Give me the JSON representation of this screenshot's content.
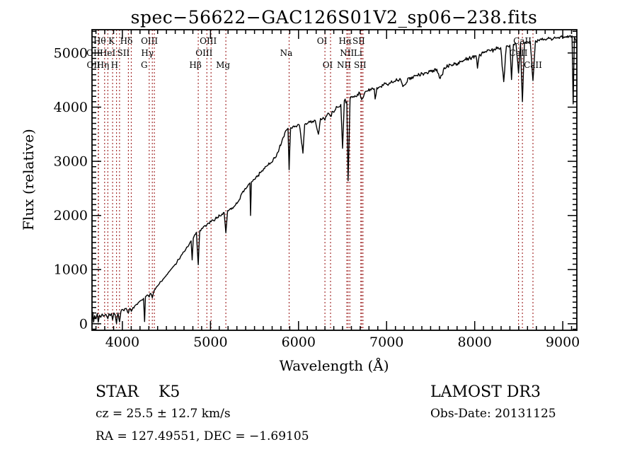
{
  "title": "spec−56622−GAC126S01V2_sp06−238.fits",
  "chart_data": {
    "type": "line",
    "title": "spec−56622−GAC126S01V2_sp06−238.fits",
    "xlabel": "Wavelength (Å)",
    "ylabel": "Flux (relative)",
    "xlim": [
      3655,
      9160
    ],
    "ylim": [
      -120,
      5430
    ],
    "x_major_ticks": [
      4000,
      5000,
      6000,
      7000,
      8000,
      9000
    ],
    "y_major_ticks": [
      0,
      1000,
      2000,
      3000,
      4000,
      5000
    ],
    "x_minor_step": 100,
    "y_minor_step": 100,
    "grid": "off",
    "legend": "none",
    "curve_color": "#000000",
    "marker_line_color": "#a53030",
    "spectral_lines": [
      {
        "label": "Hθ",
        "wavelength": 3798,
        "row": 1
      },
      {
        "label": "K",
        "wavelength": 3933,
        "row": 1
      },
      {
        "label": "Hδ",
        "wavelength": 4101,
        "row": 1
      },
      {
        "label": "OIII",
        "wavelength": 4363,
        "row": 1
      },
      {
        "label": "OIII",
        "wavelength": 5007,
        "row": 1
      },
      {
        "label": "OI",
        "wavelength": 6300,
        "row": 1
      },
      {
        "label": "Hα",
        "wavelength": 6563,
        "row": 1
      },
      {
        "label": "SII",
        "wavelength": 6716,
        "row": 1
      },
      {
        "label": "CaII",
        "wavelength": 8542,
        "row": 1
      },
      {
        "label": "OII",
        "wavelength": 3726,
        "row": 2
      },
      {
        "label": "HeI",
        "wavelength": 3889,
        "row": 2
      },
      {
        "label": "SII",
        "wavelength": 4068,
        "row": 2
      },
      {
        "label": "Hγ",
        "wavelength": 4340,
        "row": 2
      },
      {
        "label": "OIII",
        "wavelength": 4959,
        "row": 2
      },
      {
        "label": "Na",
        "wavelength": 5893,
        "row": 2
      },
      {
        "label": "NII",
        "wavelength": 6583,
        "row": 2
      },
      {
        "label": "Li",
        "wavelength": 6707,
        "row": 2
      },
      {
        "label": "CaII",
        "wavelength": 8498,
        "row": 2
      },
      {
        "label": "OII",
        "wavelength": 3729,
        "row": 3
      },
      {
        "label": "Hη",
        "wavelength": 3835,
        "row": 3
      },
      {
        "label": "H",
        "wavelength": 3968,
        "row": 3
      },
      {
        "label": "G",
        "wavelength": 4304,
        "row": 3
      },
      {
        "label": "Hβ",
        "wavelength": 4861,
        "row": 3
      },
      {
        "label": "Mg",
        "wavelength": 5175,
        "row": 3
      },
      {
        "label": "OI",
        "wavelength": 6363,
        "row": 3
      },
      {
        "label": "NII",
        "wavelength": 6548,
        "row": 3
      },
      {
        "label": "SII",
        "wavelength": 6731,
        "row": 3
      },
      {
        "label": "CaII",
        "wavelength": 8662,
        "row": 3
      }
    ],
    "series": [
      {
        "name": "flux",
        "points": [
          [
            3655,
            60
          ],
          [
            3665,
            210
          ],
          [
            3673,
            30
          ],
          [
            3685,
            150
          ],
          [
            3700,
            90
          ],
          [
            3715,
            190
          ],
          [
            3726,
            30
          ],
          [
            3740,
            160
          ],
          [
            3755,
            120
          ],
          [
            3770,
            180
          ],
          [
            3785,
            140
          ],
          [
            3798,
            155
          ],
          [
            3812,
            175
          ],
          [
            3825,
            130
          ],
          [
            3835,
            95
          ],
          [
            3848,
            185
          ],
          [
            3862,
            150
          ],
          [
            3875,
            190
          ],
          [
            3889,
            75
          ],
          [
            3903,
            200
          ],
          [
            3918,
            165
          ],
          [
            3933,
            5
          ],
          [
            3950,
            200
          ],
          [
            3968,
            35
          ],
          [
            3983,
            225
          ],
          [
            4000,
            265
          ],
          [
            4018,
            240
          ],
          [
            4035,
            280
          ],
          [
            4052,
            255
          ],
          [
            4068,
            200
          ],
          [
            4085,
            285
          ],
          [
            4101,
            230
          ],
          [
            4120,
            300
          ],
          [
            4140,
            330
          ],
          [
            4160,
            360
          ],
          [
            4180,
            390
          ],
          [
            4200,
            420
          ],
          [
            4220,
            440
          ],
          [
            4240,
            470
          ],
          [
            4252,
            40
          ],
          [
            4262,
            500
          ],
          [
            4280,
            530
          ],
          [
            4304,
            495
          ],
          [
            4322,
            560
          ],
          [
            4340,
            480
          ],
          [
            4355,
            590
          ],
          [
            4363,
            620
          ],
          [
            4380,
            660
          ],
          [
            4400,
            700
          ],
          [
            4420,
            740
          ],
          [
            4440,
            780
          ],
          [
            4460,
            820
          ],
          [
            4480,
            860
          ],
          [
            4500,
            900
          ],
          [
            4520,
            940
          ],
          [
            4540,
            980
          ],
          [
            4560,
            1020
          ],
          [
            4580,
            1060
          ],
          [
            4600,
            1100
          ],
          [
            4620,
            1140
          ],
          [
            4640,
            1190
          ],
          [
            4660,
            1240
          ],
          [
            4680,
            1285
          ],
          [
            4700,
            1330
          ],
          [
            4720,
            1375
          ],
          [
            4740,
            1420
          ],
          [
            4760,
            1475
          ],
          [
            4780,
            1530
          ],
          [
            4792,
            1180
          ],
          [
            4805,
            1580
          ],
          [
            4820,
            1640
          ],
          [
            4840,
            1690
          ],
          [
            4861,
            1090
          ],
          [
            4878,
            1720
          ],
          [
            4900,
            1760
          ],
          [
            4920,
            1790
          ],
          [
            4940,
            1815
          ],
          [
            4959,
            1830
          ],
          [
            4980,
            1860
          ],
          [
            5007,
            1885
          ],
          [
            5030,
            1915
          ],
          [
            5055,
            1940
          ],
          [
            5080,
            1965
          ],
          [
            5105,
            1995
          ],
          [
            5130,
            2025
          ],
          [
            5155,
            2055
          ],
          [
            5175,
            1680
          ],
          [
            5195,
            2090
          ],
          [
            5220,
            2115
          ],
          [
            5245,
            2140
          ],
          [
            5262,
            2155
          ],
          [
            5285,
            2195
          ],
          [
            5310,
            2245
          ],
          [
            5335,
            2300
          ],
          [
            5360,
            2420
          ],
          [
            5385,
            2470
          ],
          [
            5410,
            2510
          ],
          [
            5423,
            2545
          ],
          [
            5448,
            2600
          ],
          [
            5455,
            2000
          ],
          [
            5465,
            2620
          ],
          [
            5490,
            2665
          ],
          [
            5515,
            2700
          ],
          [
            5540,
            2740
          ],
          [
            5565,
            2790
          ],
          [
            5584,
            2825
          ],
          [
            5605,
            2865
          ],
          [
            5630,
            2905
          ],
          [
            5655,
            2935
          ],
          [
            5680,
            2960
          ],
          [
            5705,
            2995
          ],
          [
            5730,
            3060
          ],
          [
            5755,
            3140
          ],
          [
            5780,
            3230
          ],
          [
            5805,
            3330
          ],
          [
            5825,
            3440
          ],
          [
            5845,
            3530
          ],
          [
            5865,
            3580
          ],
          [
            5880,
            3610
          ],
          [
            5893,
            2845
          ],
          [
            5910,
            3620
          ],
          [
            5935,
            3640
          ],
          [
            5960,
            3650
          ],
          [
            5985,
            3660
          ],
          [
            6010,
            3665
          ],
          [
            6050,
            3150
          ],
          [
            6070,
            3680
          ],
          [
            6100,
            3700
          ],
          [
            6130,
            3720
          ],
          [
            6160,
            3740
          ],
          [
            6190,
            3755
          ],
          [
            6226,
            3500
          ],
          [
            6250,
            3790
          ],
          [
            6280,
            3810
          ],
          [
            6300,
            3760
          ],
          [
            6325,
            3860
          ],
          [
            6345,
            3880
          ],
          [
            6363,
            3830
          ],
          [
            6390,
            3920
          ],
          [
            6420,
            3960
          ],
          [
            6450,
            4000
          ],
          [
            6480,
            4050
          ],
          [
            6500,
            3240
          ],
          [
            6520,
            4120
          ],
          [
            6548,
            4100
          ],
          [
            6563,
            2640
          ],
          [
            6585,
            4150
          ],
          [
            6610,
            4180
          ],
          [
            6640,
            4210
          ],
          [
            6670,
            4240
          ],
          [
            6695,
            4260
          ],
          [
            6707,
            4180
          ],
          [
            6716,
            4140
          ],
          [
            6731,
            4170
          ],
          [
            6755,
            4280
          ],
          [
            6790,
            4300
          ],
          [
            6825,
            4320
          ],
          [
            6860,
            4340
          ],
          [
            6870,
            4150
          ],
          [
            6890,
            4360
          ],
          [
            6925,
            4380
          ],
          [
            6960,
            4400
          ],
          [
            7000,
            4420
          ],
          [
            7040,
            4440
          ],
          [
            7080,
            4465
          ],
          [
            7120,
            4490
          ],
          [
            7160,
            4510
          ],
          [
            7185,
            4380
          ],
          [
            7215,
            4420
          ],
          [
            7250,
            4540
          ],
          [
            7290,
            4560
          ],
          [
            7330,
            4580
          ],
          [
            7370,
            4600
          ],
          [
            7410,
            4620
          ],
          [
            7450,
            4640
          ],
          [
            7490,
            4660
          ],
          [
            7530,
            4680
          ],
          [
            7570,
            4700
          ],
          [
            7600,
            4540
          ],
          [
            7627,
            4590
          ],
          [
            7655,
            4730
          ],
          [
            7695,
            4750
          ],
          [
            7735,
            4775
          ],
          [
            7775,
            4800
          ],
          [
            7815,
            4825
          ],
          [
            7855,
            4850
          ],
          [
            7895,
            4875
          ],
          [
            7935,
            4900
          ],
          [
            7975,
            4925
          ],
          [
            8015,
            4950
          ],
          [
            8032,
            4720
          ],
          [
            8055,
            4975
          ],
          [
            8095,
            5000
          ],
          [
            8135,
            5020
          ],
          [
            8175,
            5040
          ],
          [
            8215,
            5060
          ],
          [
            8255,
            5080
          ],
          [
            8295,
            5100
          ],
          [
            8330,
            4470
          ],
          [
            8360,
            5130
          ],
          [
            8400,
            5145
          ],
          [
            8418,
            4510
          ],
          [
            8440,
            5160
          ],
          [
            8470,
            5170
          ],
          [
            8498,
            4630
          ],
          [
            8520,
            5185
          ],
          [
            8542,
            4100
          ],
          [
            8565,
            5195
          ],
          [
            8600,
            5205
          ],
          [
            8630,
            5215
          ],
          [
            8662,
            4490
          ],
          [
            8690,
            5225
          ],
          [
            8725,
            5235
          ],
          [
            8760,
            5245
          ],
          [
            8795,
            5255
          ],
          [
            8830,
            5265
          ],
          [
            8865,
            5270
          ],
          [
            8900,
            5280
          ],
          [
            8935,
            5285
          ],
          [
            8970,
            5295
          ],
          [
            9005,
            5300
          ],
          [
            9040,
            5305
          ],
          [
            9075,
            5310
          ],
          [
            9105,
            5315
          ],
          [
            9118,
            4060
          ],
          [
            9132,
            5290
          ],
          [
            9145,
            5250
          ],
          [
            9160,
            5180
          ]
        ]
      }
    ]
  },
  "annotations": {
    "class_label": "STAR",
    "subclass_label": "K5",
    "cz_line": "cz = 25.5 ± 12.7 km/s",
    "radec_line": "RA = 127.49551, DEC =  −1.69105",
    "survey_label": "LAMOST DR3",
    "obsdate_line": "Obs-Date: 20131125"
  }
}
